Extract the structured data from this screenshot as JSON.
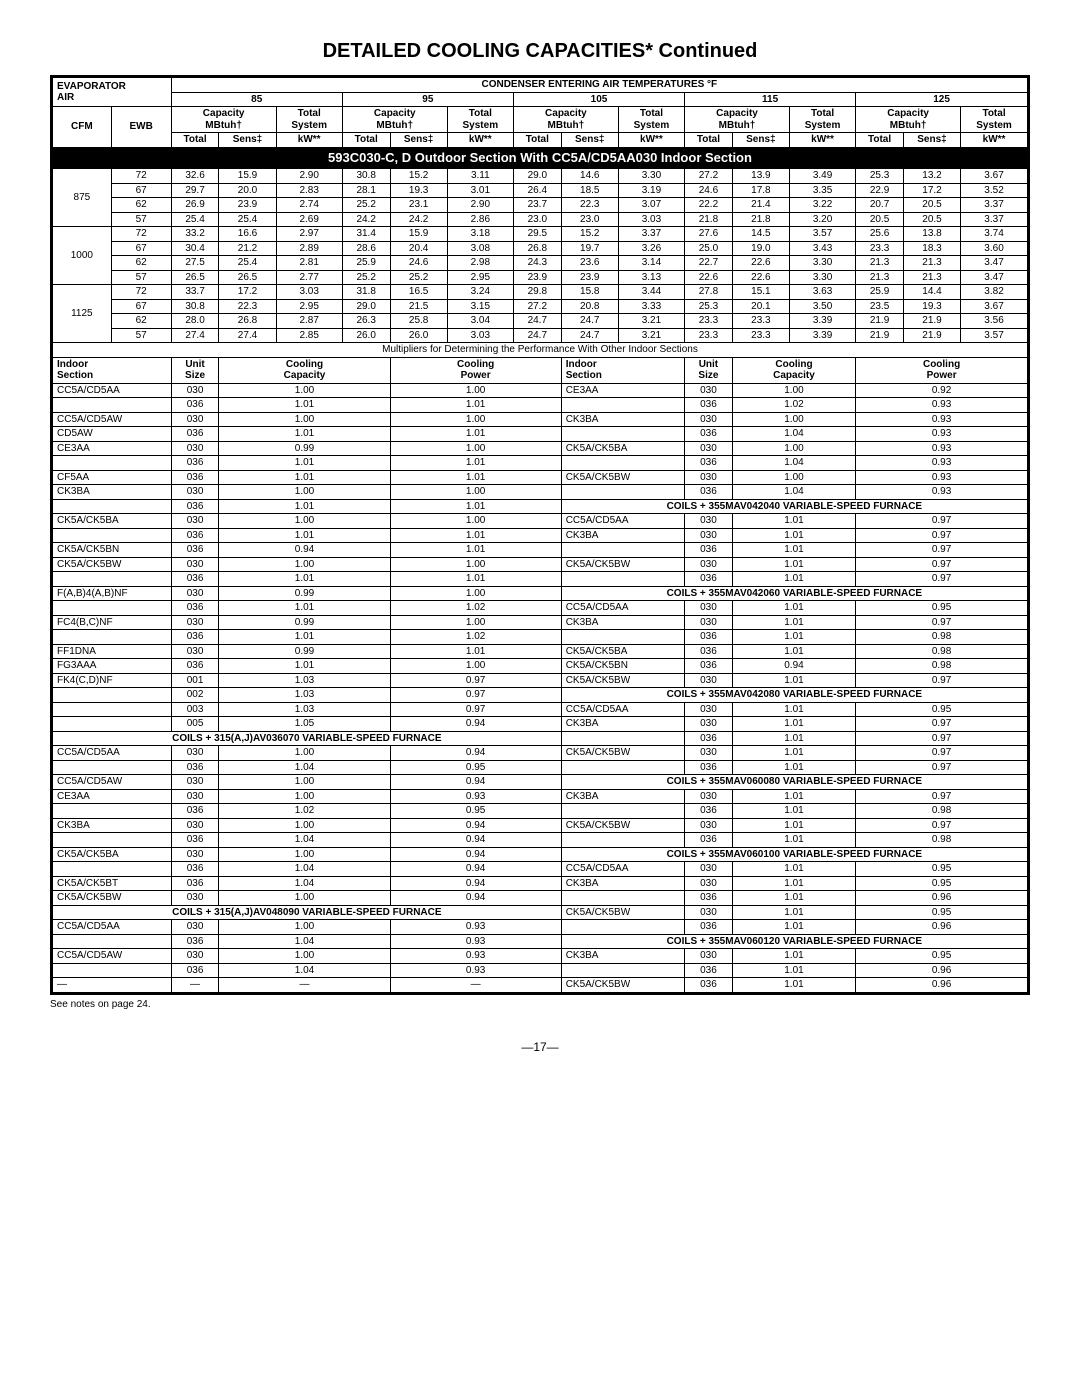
{
  "title": "DETAILED COOLING CAPACITIES* Continued",
  "header": {
    "evaporator": "EVAPORATOR",
    "air": "AIR",
    "condenser": "CONDENSER ENTERING AIR TEMPERATURES °F",
    "temps": [
      "85",
      "95",
      "105",
      "115",
      "125"
    ],
    "capacity": "Capacity",
    "mbtuh": "MBtuh†",
    "totalsystem1": "Total",
    "totalsystem2": "System",
    "cfm": "CFM",
    "ewb": "EWB",
    "total": "Total",
    "sens": "Sens‡",
    "kw": "kW**"
  },
  "blackbar": "593C030-C, D Outdoor Section With CC5A/CD5AA030 Indoor Section",
  "capRows": [
    {
      "cfm": "875",
      "ewb": [
        "72",
        "67",
        "62",
        "57"
      ],
      "v": [
        [
          "32.6",
          "15.9",
          "2.90",
          "30.8",
          "15.2",
          "3.11",
          "29.0",
          "14.6",
          "3.30",
          "27.2",
          "13.9",
          "3.49",
          "25.3",
          "13.2",
          "3.67"
        ],
        [
          "29.7",
          "20.0",
          "2.83",
          "28.1",
          "19.3",
          "3.01",
          "26.4",
          "18.5",
          "3.19",
          "24.6",
          "17.8",
          "3.35",
          "22.9",
          "17.2",
          "3.52"
        ],
        [
          "26.9",
          "23.9",
          "2.74",
          "25.2",
          "23.1",
          "2.90",
          "23.7",
          "22.3",
          "3.07",
          "22.2",
          "21.4",
          "3.22",
          "20.7",
          "20.5",
          "3.37"
        ],
        [
          "25.4",
          "25.4",
          "2.69",
          "24.2",
          "24.2",
          "2.86",
          "23.0",
          "23.0",
          "3.03",
          "21.8",
          "21.8",
          "3.20",
          "20.5",
          "20.5",
          "3.37"
        ]
      ]
    },
    {
      "cfm": "1000",
      "ewb": [
        "72",
        "67",
        "62",
        "57"
      ],
      "v": [
        [
          "33.2",
          "16.6",
          "2.97",
          "31.4",
          "15.9",
          "3.18",
          "29.5",
          "15.2",
          "3.37",
          "27.6",
          "14.5",
          "3.57",
          "25.6",
          "13.8",
          "3.74"
        ],
        [
          "30.4",
          "21.2",
          "2.89",
          "28.6",
          "20.4",
          "3.08",
          "26.8",
          "19.7",
          "3.26",
          "25.0",
          "19.0",
          "3.43",
          "23.3",
          "18.3",
          "3.60"
        ],
        [
          "27.5",
          "25.4",
          "2.81",
          "25.9",
          "24.6",
          "2.98",
          "24.3",
          "23.6",
          "3.14",
          "22.7",
          "22.6",
          "3.30",
          "21.3",
          "21.3",
          "3.47"
        ],
        [
          "26.5",
          "26.5",
          "2.77",
          "25.2",
          "25.2",
          "2.95",
          "23.9",
          "23.9",
          "3.13",
          "22.6",
          "22.6",
          "3.30",
          "21.3",
          "21.3",
          "3.47"
        ]
      ]
    },
    {
      "cfm": "1125",
      "ewb": [
        "72",
        "67",
        "62",
        "57"
      ],
      "v": [
        [
          "33.7",
          "17.2",
          "3.03",
          "31.8",
          "16.5",
          "3.24",
          "29.8",
          "15.8",
          "3.44",
          "27.8",
          "15.1",
          "3.63",
          "25.9",
          "14.4",
          "3.82"
        ],
        [
          "30.8",
          "22.3",
          "2.95",
          "29.0",
          "21.5",
          "3.15",
          "27.2",
          "20.8",
          "3.33",
          "25.3",
          "20.1",
          "3.50",
          "23.5",
          "19.3",
          "3.67"
        ],
        [
          "28.0",
          "26.8",
          "2.87",
          "26.3",
          "25.8",
          "3.04",
          "24.7",
          "24.7",
          "3.21",
          "23.3",
          "23.3",
          "3.39",
          "21.9",
          "21.9",
          "3.56"
        ],
        [
          "27.4",
          "27.4",
          "2.85",
          "26.0",
          "26.0",
          "3.03",
          "24.7",
          "24.7",
          "3.21",
          "23.3",
          "23.3",
          "3.39",
          "21.9",
          "21.9",
          "3.57"
        ]
      ]
    }
  ],
  "multNote": "Multipliers for Determining the Performance With Other Indoor Sections",
  "multHead": {
    "indoor1": "Indoor",
    "section": "Section",
    "unit1": "Unit",
    "size": "Size",
    "cooling": "Cooling",
    "capacity": "Capacity",
    "power": "Power"
  },
  "left": [
    {
      "s": "CC5A/CD5AA",
      "r": [
        [
          "030",
          "1.00",
          "1.00"
        ],
        [
          "036",
          "1.01",
          "1.01"
        ]
      ]
    },
    {
      "s": "CC5A/CD5AW",
      "r": [
        [
          "030",
          "1.00",
          "1.00"
        ]
      ]
    },
    {
      "s": "CD5AW",
      "r": [
        [
          "036",
          "1.01",
          "1.01"
        ]
      ]
    },
    {
      "s": "CE3AA",
      "r": [
        [
          "030",
          "0.99",
          "1.00"
        ],
        [
          "036",
          "1.01",
          "1.01"
        ]
      ]
    },
    {
      "s": "CF5AA",
      "r": [
        [
          "036",
          "1.01",
          "1.01"
        ]
      ]
    },
    {
      "s": "CK3BA",
      "r": [
        [
          "030",
          "1.00",
          "1.00"
        ],
        [
          "036",
          "1.01",
          "1.01"
        ]
      ]
    },
    {
      "s": "CK5A/CK5BA",
      "r": [
        [
          "030",
          "1.00",
          "1.00"
        ],
        [
          "036",
          "1.01",
          "1.01"
        ]
      ]
    },
    {
      "s": "CK5A/CK5BN",
      "r": [
        [
          "036",
          "0.94",
          "1.01"
        ]
      ]
    },
    {
      "s": "CK5A/CK5BW",
      "r": [
        [
          "030",
          "1.00",
          "1.00"
        ],
        [
          "036",
          "1.01",
          "1.01"
        ]
      ]
    },
    {
      "s": "F(A,B)4(A,B)NF",
      "r": [
        [
          "030",
          "0.99",
          "1.00"
        ],
        [
          "036",
          "1.01",
          "1.02"
        ]
      ]
    },
    {
      "s": "FC4(B,C)NF",
      "r": [
        [
          "030",
          "0.99",
          "1.00"
        ],
        [
          "036",
          "1.01",
          "1.02"
        ]
      ]
    },
    {
      "s": "FF1DNA",
      "r": [
        [
          "030",
          "0.99",
          "1.01"
        ]
      ]
    },
    {
      "s": "FG3AAA",
      "r": [
        [
          "036",
          "1.01",
          "1.00"
        ]
      ]
    },
    {
      "s": "FK4(C,D)NF",
      "r": [
        [
          "001",
          "1.03",
          "0.97"
        ],
        [
          "002",
          "1.03",
          "0.97"
        ],
        [
          "003",
          "1.03",
          "0.97"
        ],
        [
          "005",
          "1.05",
          "0.94"
        ]
      ]
    },
    {
      "h": "COILS + 315(A,J)AV036070 VARIABLE-SPEED FURNACE"
    },
    {
      "s": "CC5A/CD5AA",
      "r": [
        [
          "030",
          "1.00",
          "0.94"
        ],
        [
          "036",
          "1.04",
          "0.95"
        ]
      ]
    },
    {
      "s": "CC5A/CD5AW",
      "r": [
        [
          "030",
          "1.00",
          "0.94"
        ]
      ]
    },
    {
      "s": "CE3AA",
      "r": [
        [
          "030",
          "1.00",
          "0.93"
        ],
        [
          "036",
          "1.02",
          "0.95"
        ]
      ]
    },
    {
      "s": "CK3BA",
      "r": [
        [
          "030",
          "1.00",
          "0.94"
        ],
        [
          "036",
          "1.04",
          "0.94"
        ]
      ]
    },
    {
      "s": "CK5A/CK5BA",
      "r": [
        [
          "030",
          "1.00",
          "0.94"
        ],
        [
          "036",
          "1.04",
          "0.94"
        ]
      ]
    },
    {
      "s": "CK5A/CK5BT",
      "r": [
        [
          "036",
          "1.04",
          "0.94"
        ]
      ]
    },
    {
      "s": "CK5A/CK5BW",
      "r": [
        [
          "030",
          "1.00",
          "0.94"
        ]
      ]
    },
    {
      "h": "COILS + 315(A,J)AV048090 VARIABLE-SPEED FURNACE"
    },
    {
      "s": "CC5A/CD5AA",
      "r": [
        [
          "030",
          "1.00",
          "0.93"
        ],
        [
          "036",
          "1.04",
          "0.93"
        ]
      ]
    },
    {
      "s": "CC5A/CD5AW",
      "r": [
        [
          "030",
          "1.00",
          "0.93"
        ],
        [
          "036",
          "1.04",
          "0.93"
        ]
      ]
    },
    {
      "s": "—",
      "r": [
        [
          "—",
          "—",
          "—"
        ]
      ]
    }
  ],
  "right": [
    {
      "s": "CE3AA",
      "r": [
        [
          "030",
          "1.00",
          "0.92"
        ],
        [
          "036",
          "1.02",
          "0.93"
        ]
      ]
    },
    {
      "s": "CK3BA",
      "r": [
        [
          "030",
          "1.00",
          "0.93"
        ],
        [
          "036",
          "1.04",
          "0.93"
        ]
      ]
    },
    {
      "s": "CK5A/CK5BA",
      "r": [
        [
          "030",
          "1.00",
          "0.93"
        ],
        [
          "036",
          "1.04",
          "0.93"
        ]
      ]
    },
    {
      "s": "CK5A/CK5BW",
      "r": [
        [
          "030",
          "1.00",
          "0.93"
        ],
        [
          "036",
          "1.04",
          "0.93"
        ]
      ]
    },
    {
      "h": "COILS + 355MAV042040 VARIABLE-SPEED FURNACE"
    },
    {
      "s": "CC5A/CD5AA",
      "r": [
        [
          "030",
          "1.01",
          "0.97"
        ]
      ]
    },
    {
      "s": "CK3BA",
      "r": [
        [
          "030",
          "1.01",
          "0.97"
        ],
        [
          "036",
          "1.01",
          "0.97"
        ]
      ]
    },
    {
      "s": "CK5A/CK5BW",
      "r": [
        [
          "030",
          "1.01",
          "0.97"
        ],
        [
          "036",
          "1.01",
          "0.97"
        ]
      ]
    },
    {
      "h": "COILS + 355MAV042060 VARIABLE-SPEED FURNACE"
    },
    {
      "s": "CC5A/CD5AA",
      "r": [
        [
          "030",
          "1.01",
          "0.95"
        ]
      ]
    },
    {
      "s": "CK3BA",
      "r": [
        [
          "030",
          "1.01",
          "0.97"
        ],
        [
          "036",
          "1.01",
          "0.98"
        ]
      ]
    },
    {
      "s": "CK5A/CK5BA",
      "r": [
        [
          "036",
          "1.01",
          "0.98"
        ]
      ]
    },
    {
      "s": "CK5A/CK5BN",
      "r": [
        [
          "036",
          "0.94",
          "0.98"
        ]
      ]
    },
    {
      "s": "CK5A/CK5BW",
      "r": [
        [
          "030",
          "1.01",
          "0.97"
        ]
      ]
    },
    {
      "h": "COILS + 355MAV042080 VARIABLE-SPEED FURNACE"
    },
    {
      "s": "CC5A/CD5AA",
      "r": [
        [
          "030",
          "1.01",
          "0.95"
        ]
      ]
    },
    {
      "s": "CK3BA",
      "r": [
        [
          "030",
          "1.01",
          "0.97"
        ],
        [
          "036",
          "1.01",
          "0.97"
        ]
      ]
    },
    {
      "s": "CK5A/CK5BW",
      "r": [
        [
          "030",
          "1.01",
          "0.97"
        ],
        [
          "036",
          "1.01",
          "0.97"
        ]
      ]
    },
    {
      "h": "COILS + 355MAV060080 VARIABLE-SPEED FURNACE"
    },
    {
      "s": "CK3BA",
      "r": [
        [
          "030",
          "1.01",
          "0.97"
        ],
        [
          "036",
          "1.01",
          "0.98"
        ]
      ]
    },
    {
      "s": "CK5A/CK5BW",
      "r": [
        [
          "030",
          "1.01",
          "0.97"
        ],
        [
          "036",
          "1.01",
          "0.98"
        ]
      ]
    },
    {
      "h": "COILS + 355MAV060100 VARIABLE-SPEED FURNACE"
    },
    {
      "s": "CC5A/CD5AA",
      "r": [
        [
          "030",
          "1.01",
          "0.95"
        ]
      ]
    },
    {
      "s": "CK3BA",
      "r": [
        [
          "030",
          "1.01",
          "0.95"
        ],
        [
          "036",
          "1.01",
          "0.96"
        ]
      ]
    },
    {
      "s": "CK5A/CK5BW",
      "r": [
        [
          "030",
          "1.01",
          "0.95"
        ],
        [
          "036",
          "1.01",
          "0.96"
        ]
      ]
    },
    {
      "h": "COILS + 355MAV060120 VARIABLE-SPEED FURNACE"
    },
    {
      "s": "CK3BA",
      "r": [
        [
          "030",
          "1.01",
          "0.95"
        ],
        [
          "036",
          "1.01",
          "0.96"
        ]
      ]
    },
    {
      "s": "CK5A/CK5BW",
      "r": [
        [
          "036",
          "1.01",
          "0.96"
        ]
      ]
    }
  ],
  "seeNotes": "See notes on page 24.",
  "pageNum": "—17—"
}
